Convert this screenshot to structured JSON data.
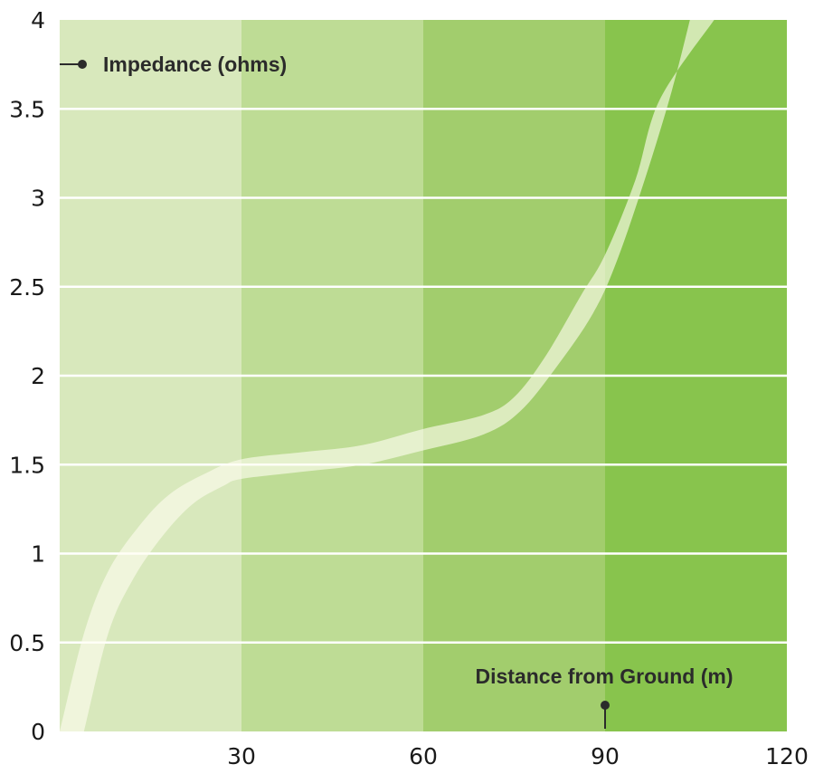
{
  "chart_data": {
    "type": "area",
    "title": "",
    "xlabel": "Distance from Ground (m)",
    "ylabel": "Impedance (ohms)",
    "xlim": [
      0,
      120
    ],
    "ylim": [
      0,
      4
    ],
    "x_ticks": [
      "30",
      "60",
      "90",
      "120"
    ],
    "x_tick_values": [
      30,
      60,
      90,
      120
    ],
    "y_ticks": [
      "0",
      "0.5",
      "1",
      "1.5",
      "2",
      "2.5",
      "3",
      "3.5",
      "4"
    ],
    "y_tick_values": [
      0,
      0.5,
      1,
      1.5,
      2,
      2.5,
      3,
      3.5,
      4
    ],
    "grid": "horizontal",
    "bands": [
      {
        "x_from": 0,
        "x_to": 30,
        "color": "#d8e8bc"
      },
      {
        "x_from": 30,
        "x_to": 60,
        "color": "#bedc95"
      },
      {
        "x_from": 60,
        "x_to": 90,
        "color": "#a2cd6d"
      },
      {
        "x_from": 90,
        "x_to": 120,
        "color": "#88c44d"
      }
    ],
    "series": [
      {
        "color": "#fffdf0",
        "band_lower": [
          [
            4,
            0
          ],
          [
            8,
            0.55
          ],
          [
            12,
            0.85
          ],
          [
            17,
            1.1
          ],
          [
            22,
            1.28
          ],
          [
            27,
            1.38
          ],
          [
            30,
            1.42
          ],
          [
            40,
            1.46
          ],
          [
            50,
            1.5
          ],
          [
            60,
            1.58
          ],
          [
            70,
            1.67
          ],
          [
            76,
            1.8
          ],
          [
            82,
            2.05
          ],
          [
            88,
            2.35
          ],
          [
            92,
            2.65
          ],
          [
            97,
            3.15
          ],
          [
            101,
            3.6
          ],
          [
            104,
            4
          ]
        ],
        "band_upper": [
          [
            0,
            0
          ],
          [
            4,
            0.55
          ],
          [
            8,
            0.9
          ],
          [
            13,
            1.15
          ],
          [
            18,
            1.33
          ],
          [
            24,
            1.45
          ],
          [
            30,
            1.53
          ],
          [
            40,
            1.57
          ],
          [
            50,
            1.61
          ],
          [
            60,
            1.7
          ],
          [
            70,
            1.78
          ],
          [
            75,
            1.88
          ],
          [
            80,
            2.1
          ],
          [
            86,
            2.45
          ],
          [
            90,
            2.68
          ],
          [
            95,
            3.1
          ],
          [
            99,
            3.55
          ],
          [
            108,
            4
          ]
        ]
      }
    ]
  }
}
